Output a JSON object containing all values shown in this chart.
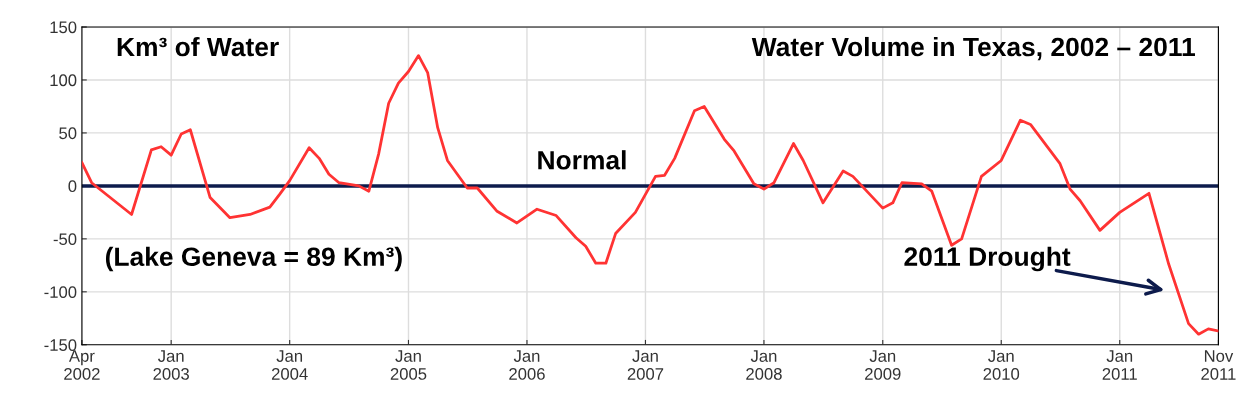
{
  "chart_data": {
    "type": "line",
    "title": "Water Volume in Texas, 2002 – 2011",
    "ylabel": "Km³ of Water",
    "annotations": [
      "(Lake Geneva = 89 Km³)",
      "2011 Drought"
    ],
    "x": [
      "2002-04",
      "2002-05",
      "2002-09",
      "2002-11",
      "2002-12",
      "2003-01",
      "2003-02",
      "2003-03",
      "2003-05",
      "2003-07",
      "2003-09",
      "2003-11",
      "2003-12",
      "2004-01",
      "2004-03",
      "2004-04",
      "2004-05",
      "2004-06",
      "2004-08",
      "2004-09",
      "2004-10",
      "2004-11",
      "2004-12",
      "2005-01",
      "2005-02",
      "2005-03",
      "2005-04",
      "2005-05",
      "2005-07",
      "2005-08",
      "2005-10",
      "2005-12",
      "2006-02",
      "2006-04",
      "2006-06",
      "2006-07",
      "2006-08",
      "2006-09",
      "2006-10",
      "2006-12",
      "2007-02",
      "2007-03",
      "2007-04",
      "2007-06",
      "2007-07",
      "2007-09",
      "2007-10",
      "2007-12",
      "2008-01",
      "2008-02",
      "2008-04",
      "2008-05",
      "2008-07",
      "2008-09",
      "2008-10",
      "2009-01",
      "2009-02",
      "2009-03",
      "2009-05",
      "2009-06",
      "2009-08",
      "2009-09",
      "2009-11",
      "2010-01",
      "2010-03",
      "2010-04",
      "2010-07",
      "2010-08",
      "2010-09",
      "2010-11",
      "2011-01",
      "2011-04",
      "2011-06",
      "2011-08",
      "2011-09",
      "2011-10",
      "2011-11"
    ],
    "series": [
      {
        "color": "#ff3333",
        "values": [
          22,
          3,
          -27,
          34,
          37,
          29,
          49,
          53,
          -11,
          -30,
          -27,
          -20,
          -8,
          5,
          36,
          26,
          11,
          3,
          0,
          -5,
          30,
          78,
          97,
          108,
          123,
          107,
          55,
          24,
          -2,
          -2,
          -24,
          -35,
          -22,
          -28,
          -49,
          -57,
          -73,
          -73,
          -45,
          -25,
          9,
          10,
          26,
          71,
          75,
          44,
          33,
          2,
          -3,
          3,
          40,
          24,
          -16,
          14,
          9,
          -21,
          -16,
          3,
          2,
          -5,
          -56,
          -50,
          9,
          24,
          62,
          58,
          21,
          -3,
          -14,
          -42,
          -25,
          -7,
          -74,
          -130,
          -140,
          -135,
          -137
        ]
      }
    ],
    "xlim": [
      "2002-04",
      "2011-11"
    ],
    "xticks": [
      {
        "value": "2002-04",
        "label": "Apr\n2002"
      },
      {
        "value": "2003-01",
        "label": "Jan\n2003"
      },
      {
        "value": "2004-01",
        "label": "Jan\n2004"
      },
      {
        "value": "2005-01",
        "label": "Jan\n2005"
      },
      {
        "value": "2006-01",
        "label": "Jan\n2006"
      },
      {
        "value": "2007-01",
        "label": "Jan\n2007"
      },
      {
        "value": "2008-01",
        "label": "Jan\n2008"
      },
      {
        "value": "2009-01",
        "label": "Jan\n2009"
      },
      {
        "value": "2010-01",
        "label": "Jan\n2010"
      },
      {
        "value": "2011-01",
        "label": "Jan\n2011"
      },
      {
        "value": "2011-11",
        "label": "Nov\n2011"
      }
    ],
    "ylim": [
      -150,
      150
    ],
    "yticks": [
      -150,
      -100,
      -50,
      0,
      50,
      100,
      150
    ],
    "ref_lines": [
      {
        "axis": "y",
        "value": 0,
        "label": "Normal",
        "color": "#0d1b4c"
      }
    ],
    "grid": true,
    "marker": "none",
    "line_style": "solid"
  }
}
